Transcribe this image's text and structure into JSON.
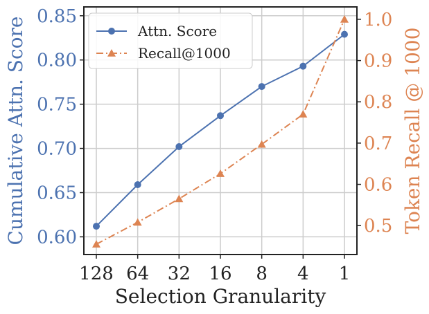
{
  "chart_data": {
    "type": "line",
    "categories": [
      "128",
      "64",
      "32",
      "16",
      "8",
      "4",
      "1"
    ],
    "xlabel": "Selection Granularity",
    "ylabel_left": "Cumulative Attn. Score",
    "ylabel_right": "Token Recall @ 1000",
    "ylim_left": [
      0.58,
      0.86
    ],
    "ylim_right": [
      0.43,
      1.03
    ],
    "yticks_left": [
      0.6,
      0.65,
      0.7,
      0.75,
      0.8,
      0.85
    ],
    "yticks_right": [
      0.5,
      0.6,
      0.7,
      0.8,
      0.9,
      1.0
    ],
    "grid": true,
    "legend_position": "top-left",
    "series": [
      {
        "name": "Attn. Score",
        "axis": "left",
        "marker": "circle",
        "linestyle": "solid",
        "color": "#4c72b0",
        "values": [
          0.612,
          0.659,
          0.702,
          0.737,
          0.77,
          0.793,
          0.829
        ]
      },
      {
        "name": "Recall@1000",
        "axis": "right",
        "marker": "triangle",
        "linestyle": "dashdot",
        "color": "#dd8452",
        "values": [
          0.455,
          0.508,
          0.565,
          0.626,
          0.697,
          0.77,
          1.0
        ]
      }
    ],
    "colors": {
      "left_axis": "#4c72b0",
      "right_axis": "#dd8452",
      "grid": "#cccccc",
      "frame": "#222222"
    }
  }
}
